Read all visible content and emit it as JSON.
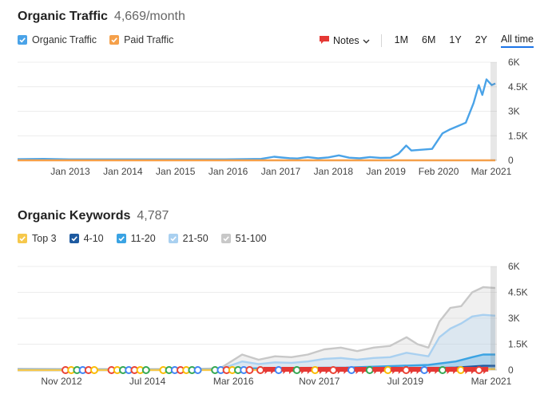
{
  "traffic": {
    "title": "Organic Traffic",
    "metric": "4,669/month",
    "legend": [
      {
        "label": "Organic Traffic",
        "color": "#4aa3e8"
      },
      {
        "label": "Paid Traffic",
        "color": "#f5a04a"
      }
    ],
    "controls": {
      "notes_label": "Notes",
      "ranges": [
        "1M",
        "6M",
        "1Y",
        "2Y",
        "All time"
      ],
      "active_range": "All time"
    }
  },
  "keywords": {
    "title": "Organic Keywords",
    "metric": "4,787",
    "legend": [
      {
        "label": "Top 3",
        "color": "#f6c84c"
      },
      {
        "label": "4-10",
        "color": "#1e5aa0"
      },
      {
        "label": "11-20",
        "color": "#3aa3e3"
      },
      {
        "label": "21-50",
        "color": "#a9d0f0"
      },
      {
        "label": "51-100",
        "color": "#c8c8c8"
      }
    ]
  },
  "chart_data": [
    {
      "type": "line",
      "title": "Organic Traffic",
      "x_tick_labels": [
        "Jan 2013",
        "Jan 2014",
        "Jan 2015",
        "Jan 2016",
        "Jan 2017",
        "Jan 2018",
        "Jan 2019",
        "Feb 2020",
        "Mar 2021"
      ],
      "y_tick_labels": [
        "6K",
        "4.5K",
        "3K",
        "1.5K",
        "0"
      ],
      "ylim": [
        0,
        6000
      ],
      "xlim": [
        2012.0,
        2021.25
      ],
      "grid": true,
      "series": [
        {
          "name": "Organic Traffic",
          "color": "#4aa3e8",
          "x": [
            2012.0,
            2012.5,
            2013.0,
            2014.0,
            2015.0,
            2016.0,
            2016.7,
            2016.95,
            2017.1,
            2017.25,
            2017.4,
            2017.6,
            2017.8,
            2018.0,
            2018.2,
            2018.4,
            2018.6,
            2018.8,
            2019.0,
            2019.2,
            2019.35,
            2019.5,
            2019.6,
            2019.8,
            2020.0,
            2020.2,
            2020.35,
            2020.5,
            2020.65,
            2020.8,
            2020.9,
            2020.97,
            2021.05,
            2021.15,
            2021.22
          ],
          "y": [
            70,
            90,
            60,
            60,
            60,
            60,
            90,
            220,
            170,
            130,
            110,
            200,
            120,
            180,
            300,
            160,
            120,
            200,
            150,
            160,
            400,
            900,
            600,
            650,
            700,
            1650,
            1900,
            2100,
            2300,
            3500,
            4600,
            4000,
            4950,
            4600,
            4700
          ]
        },
        {
          "name": "Paid Traffic",
          "color": "#f5a04a",
          "x": [
            2012.0,
            2021.22
          ],
          "y": [
            0,
            0
          ]
        }
      ]
    },
    {
      "type": "area",
      "title": "Organic Keywords",
      "x_tick_labels": [
        "Nov 2012",
        "Jul 2014",
        "Mar 2016",
        "Nov 2017",
        "Jul 2019",
        "Mar 2021"
      ],
      "y_tick_labels": [
        "6K",
        "4.5K",
        "3K",
        "1.5K",
        "0"
      ],
      "ylim": [
        0,
        6000
      ],
      "xlim": [
        2012.5,
        2021.25
      ],
      "grid": true,
      "series": [
        {
          "name": "51-100",
          "color": "#c8c8c8",
          "x": [
            2012.5,
            2013.5,
            2014.5,
            2015.5,
            2016.2,
            2016.6,
            2016.9,
            2017.2,
            2017.5,
            2017.8,
            2018.1,
            2018.4,
            2018.7,
            2019.0,
            2019.3,
            2019.6,
            2019.8,
            2020.0,
            2020.2,
            2020.4,
            2020.6,
            2020.8,
            2021.0,
            2021.22
          ],
          "y": [
            80,
            60,
            60,
            60,
            100,
            900,
            600,
            800,
            750,
            900,
            1200,
            1300,
            1100,
            1300,
            1400,
            1900,
            1500,
            1300,
            2800,
            3600,
            3700,
            4500,
            4800,
            4750
          ]
        },
        {
          "name": "21-50",
          "color": "#a9d0f0",
          "x": [
            2012.5,
            2013.5,
            2014.5,
            2015.5,
            2016.2,
            2016.6,
            2016.9,
            2017.2,
            2017.5,
            2017.8,
            2018.1,
            2018.4,
            2018.7,
            2019.0,
            2019.3,
            2019.6,
            2019.8,
            2020.0,
            2020.2,
            2020.4,
            2020.6,
            2020.8,
            2021.0,
            2021.22
          ],
          "y": [
            40,
            30,
            30,
            30,
            60,
            500,
            350,
            450,
            420,
            500,
            650,
            700,
            600,
            700,
            750,
            1000,
            900,
            800,
            1900,
            2400,
            2700,
            3100,
            3200,
            3150
          ]
        },
        {
          "name": "11-20",
          "color": "#3aa3e3",
          "x": [
            2012.5,
            2014.5,
            2016.2,
            2016.8,
            2017.5,
            2018.5,
            2019.5,
            2020.0,
            2020.5,
            2020.8,
            2021.0,
            2021.22
          ],
          "y": [
            10,
            10,
            20,
            100,
            120,
            150,
            250,
            300,
            500,
            750,
            900,
            900
          ]
        },
        {
          "name": "4-10",
          "color": "#1e5aa0",
          "x": [
            2012.5,
            2016.2,
            2018.5,
            2019.5,
            2020.5,
            2021.0,
            2021.22
          ],
          "y": [
            0,
            10,
            40,
            80,
            150,
            250,
            250
          ]
        },
        {
          "name": "Top 3",
          "color": "#f6c84c",
          "x": [
            2012.5,
            2018.5,
            2020.5,
            2021.22
          ],
          "y": [
            0,
            10,
            30,
            60
          ]
        }
      ]
    }
  ]
}
